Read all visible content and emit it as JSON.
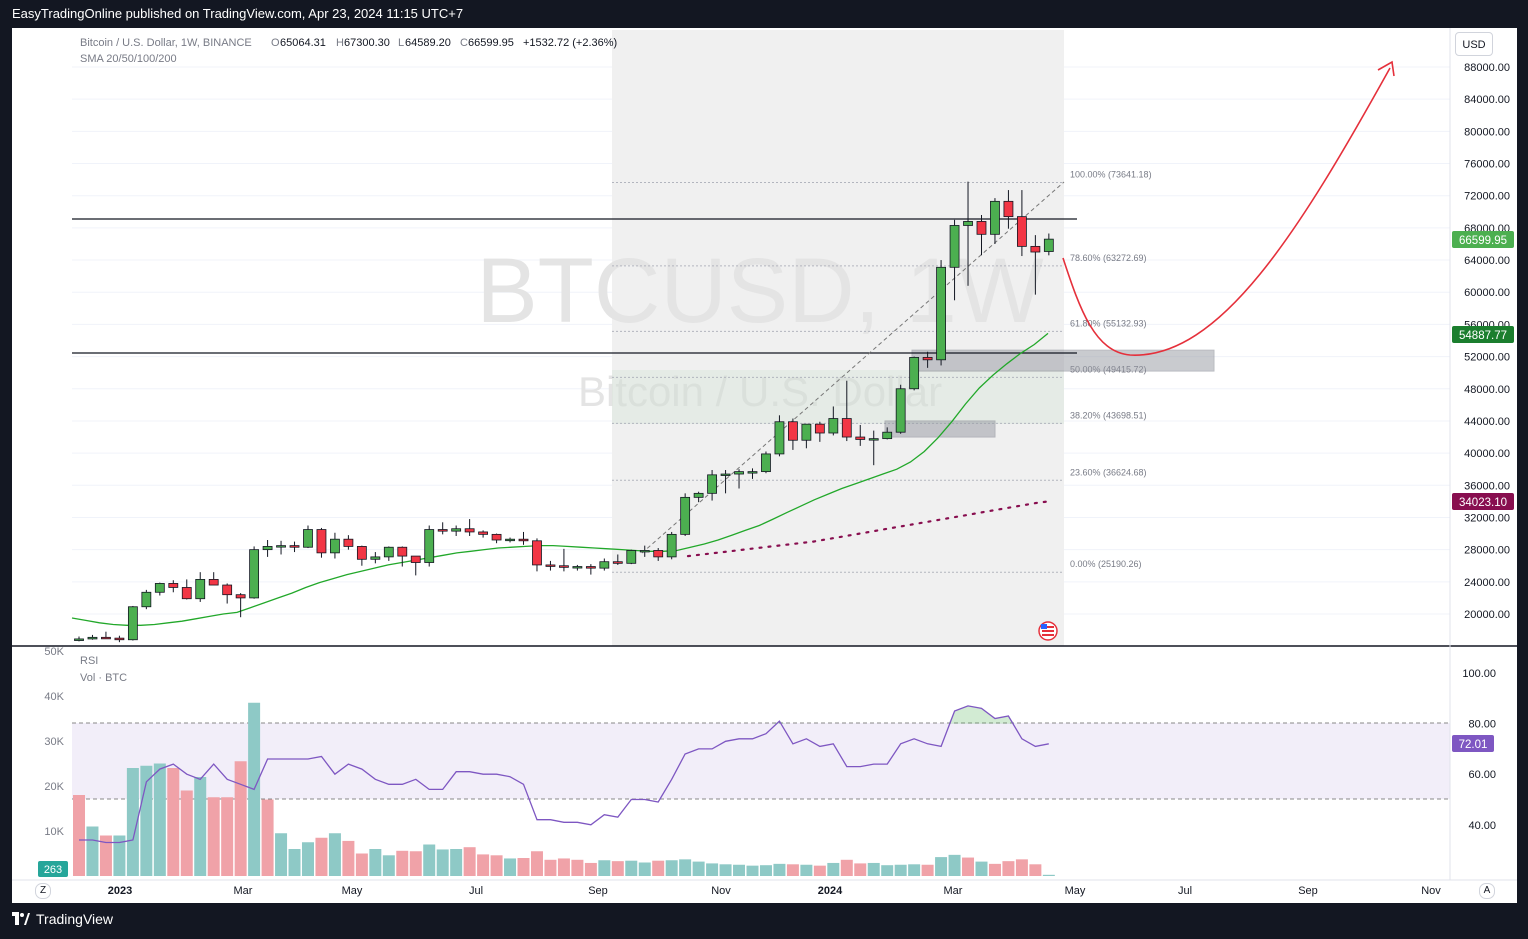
{
  "header": {
    "publish_text": "EasyTradingOnline published on TradingView.com, Apr 23, 2024 11:15 UTC+7"
  },
  "legend": {
    "symbol": "Bitcoin / U.S. Dollar, 1W, BINANCE",
    "open_label": "O",
    "open": "65064.31",
    "high_label": "H",
    "high": "67300.30",
    "low_label": "L",
    "low": "64589.20",
    "close_label": "C",
    "close": "66599.95",
    "change": "+1532.72 (+2.36%)",
    "indicator": "SMA 20/50/100/200"
  },
  "watermark": {
    "ticker": "BTCUSD, 1W",
    "name": "Bitcoin / U.S. Dollar"
  },
  "currency_button": "USD",
  "price_badges": {
    "last": "66599.95",
    "sma_a": "54887.77",
    "sma_b": "34023.10"
  },
  "fib_labels": [
    {
      "label": "100.00% (73641.18)",
      "price": 73641.18
    },
    {
      "label": "78.60% (63272.69)",
      "price": 63272.69
    },
    {
      "label": "61.80% (55132.93)",
      "price": 55132.93
    },
    {
      "label": "50.00% (49415.72)",
      "price": 49415.72
    },
    {
      "label": "38.20% (43698.51)",
      "price": 43698.51
    },
    {
      "label": "23.60% (36624.68)",
      "price": 36624.68
    },
    {
      "label": "0.00% (25190.26)",
      "price": 25190.26
    }
  ],
  "lower_pane": {
    "rsi_label": "RSI",
    "vol_label": "Vol · BTC",
    "rsi_value": "72.01",
    "vol_value": "263"
  },
  "footer": {
    "brand": "TradingView",
    "z_label": "Z",
    "a_label": "A"
  },
  "colors": {
    "up": "#4caf50",
    "down": "#f23645",
    "sma": "#22a82a",
    "sma_slow": "#880e4f",
    "rsi": "#7e57c2"
  },
  "chart_data": {
    "type": "candlestick",
    "timeframe": "1W",
    "price_axis_ticks": [
      "88000.00",
      "84000.00",
      "80000.00",
      "76000.00",
      "72000.00",
      "68000.00",
      "64000.00",
      "60000.00",
      "56000.00",
      "52000.00",
      "48000.00",
      "44000.00",
      "40000.00",
      "36000.00",
      "32000.00",
      "28000.00",
      "24000.00",
      "20000.00"
    ],
    "time_axis_ticks": [
      "2023",
      "Mar",
      "May",
      "Jul",
      "Sep",
      "Nov",
      "2024",
      "Mar",
      "May",
      "Jul",
      "Sep",
      "Nov"
    ],
    "rsi_axis_ticks": [
      "100.00",
      "80.00",
      "60.00",
      "40.00"
    ],
    "vol_axis_ticks": [
      "50K",
      "40K",
      "30K",
      "20K",
      "10K"
    ],
    "candles": [
      {
        "o": 16700,
        "h": 17200,
        "l": 16600,
        "c": 16900
      },
      {
        "o": 16900,
        "h": 17400,
        "l": 16800,
        "c": 17100
      },
      {
        "o": 17100,
        "h": 17800,
        "l": 16900,
        "c": 17000
      },
      {
        "o": 17000,
        "h": 17300,
        "l": 16500,
        "c": 16800
      },
      {
        "o": 16800,
        "h": 21000,
        "l": 16700,
        "c": 20900
      },
      {
        "o": 20900,
        "h": 23000,
        "l": 20600,
        "c": 22700
      },
      {
        "o": 22700,
        "h": 23900,
        "l": 22300,
        "c": 23800
      },
      {
        "o": 23800,
        "h": 24200,
        "l": 22700,
        "c": 23300
      },
      {
        "o": 23300,
        "h": 24300,
        "l": 21800,
        "c": 21900
      },
      {
        "o": 21900,
        "h": 25200,
        "l": 21500,
        "c": 24300
      },
      {
        "o": 24300,
        "h": 25200,
        "l": 23600,
        "c": 23600
      },
      {
        "o": 23600,
        "h": 23800,
        "l": 21300,
        "c": 22400
      },
      {
        "o": 22400,
        "h": 22600,
        "l": 19600,
        "c": 22000
      },
      {
        "o": 22000,
        "h": 28400,
        "l": 21900,
        "c": 28000
      },
      {
        "o": 28000,
        "h": 29200,
        "l": 27100,
        "c": 28400
      },
      {
        "o": 28400,
        "h": 29100,
        "l": 27400,
        "c": 28500
      },
      {
        "o": 28500,
        "h": 29000,
        "l": 27700,
        "c": 28300
      },
      {
        "o": 28300,
        "h": 31000,
        "l": 28200,
        "c": 30500
      },
      {
        "o": 30500,
        "h": 30700,
        "l": 27000,
        "c": 27600
      },
      {
        "o": 27600,
        "h": 30100,
        "l": 26900,
        "c": 29300
      },
      {
        "o": 29300,
        "h": 29800,
        "l": 28000,
        "c": 28400
      },
      {
        "o": 28400,
        "h": 28500,
        "l": 26000,
        "c": 26800
      },
      {
        "o": 26800,
        "h": 27700,
        "l": 26300,
        "c": 27100
      },
      {
        "o": 27100,
        "h": 28400,
        "l": 26600,
        "c": 28300
      },
      {
        "o": 28300,
        "h": 28400,
        "l": 25900,
        "c": 27200
      },
      {
        "o": 27200,
        "h": 27200,
        "l": 24800,
        "c": 26400
      },
      {
        "o": 26400,
        "h": 31000,
        "l": 25900,
        "c": 30500
      },
      {
        "o": 30500,
        "h": 31400,
        "l": 29900,
        "c": 30300
      },
      {
        "o": 30300,
        "h": 31000,
        "l": 29700,
        "c": 30600
      },
      {
        "o": 30600,
        "h": 31800,
        "l": 29700,
        "c": 30200
      },
      {
        "o": 30200,
        "h": 30400,
        "l": 29500,
        "c": 29900
      },
      {
        "o": 29900,
        "h": 30000,
        "l": 28800,
        "c": 29200
      },
      {
        "o": 29200,
        "h": 29500,
        "l": 28900,
        "c": 29300
      },
      {
        "o": 29300,
        "h": 30200,
        "l": 28600,
        "c": 29100
      },
      {
        "o": 29100,
        "h": 29400,
        "l": 25300,
        "c": 26100
      },
      {
        "o": 26100,
        "h": 26600,
        "l": 25400,
        "c": 26000
      },
      {
        "o": 26000,
        "h": 28100,
        "l": 25300,
        "c": 25800
      },
      {
        "o": 25800,
        "h": 26100,
        "l": 25400,
        "c": 25900
      },
      {
        "o": 25900,
        "h": 26200,
        "l": 24900,
        "c": 25700
      },
      {
        "o": 25700,
        "h": 26900,
        "l": 25400,
        "c": 26500
      },
      {
        "o": 26500,
        "h": 27400,
        "l": 26100,
        "c": 26300
      },
      {
        "o": 26300,
        "h": 28000,
        "l": 26200,
        "c": 27900
      },
      {
        "o": 27900,
        "h": 28500,
        "l": 27100,
        "c": 27900
      },
      {
        "o": 27900,
        "h": 28200,
        "l": 26600,
        "c": 27100
      },
      {
        "o": 27100,
        "h": 30200,
        "l": 26800,
        "c": 29900
      },
      {
        "o": 29900,
        "h": 35000,
        "l": 29700,
        "c": 34500
      },
      {
        "o": 34500,
        "h": 35200,
        "l": 33900,
        "c": 35000
      },
      {
        "o": 35000,
        "h": 37900,
        "l": 34100,
        "c": 37300
      },
      {
        "o": 37300,
        "h": 37900,
        "l": 35000,
        "c": 37400
      },
      {
        "o": 37400,
        "h": 38000,
        "l": 35600,
        "c": 37700
      },
      {
        "o": 37700,
        "h": 38100,
        "l": 36800,
        "c": 37700
      },
      {
        "o": 37700,
        "h": 40200,
        "l": 37500,
        "c": 39900
      },
      {
        "o": 39900,
        "h": 44700,
        "l": 39600,
        "c": 43900
      },
      {
        "o": 43900,
        "h": 44300,
        "l": 40400,
        "c": 41600
      },
      {
        "o": 41600,
        "h": 43500,
        "l": 40600,
        "c": 43600
      },
      {
        "o": 43600,
        "h": 43900,
        "l": 41400,
        "c": 42500
      },
      {
        "o": 42500,
        "h": 45800,
        "l": 42200,
        "c": 44300
      },
      {
        "o": 44300,
        "h": 49000,
        "l": 41500,
        "c": 42000
      },
      {
        "o": 42000,
        "h": 43500,
        "l": 40900,
        "c": 41700
      },
      {
        "o": 41700,
        "h": 42800,
        "l": 38500,
        "c": 41800
      },
      {
        "o": 41800,
        "h": 43200,
        "l": 41700,
        "c": 42600
      },
      {
        "o": 42600,
        "h": 48500,
        "l": 42400,
        "c": 48000
      },
      {
        "o": 48000,
        "h": 52000,
        "l": 47800,
        "c": 51900
      },
      {
        "o": 51900,
        "h": 52600,
        "l": 50600,
        "c": 51600
      },
      {
        "o": 51600,
        "h": 64000,
        "l": 50900,
        "c": 63100
      },
      {
        "o": 63100,
        "h": 69000,
        "l": 59000,
        "c": 68300
      },
      {
        "o": 68300,
        "h": 73750,
        "l": 60800,
        "c": 68800
      },
      {
        "o": 68800,
        "h": 69600,
        "l": 64600,
        "c": 67200
      },
      {
        "o": 67200,
        "h": 71700,
        "l": 66000,
        "c": 71300
      },
      {
        "o": 71300,
        "h": 72700,
        "l": 67900,
        "c": 69400
      },
      {
        "o": 69400,
        "h": 72700,
        "l": 64500,
        "c": 65700
      },
      {
        "o": 65700,
        "h": 67100,
        "l": 59700,
        "c": 65000
      },
      {
        "o": 65064.31,
        "h": 67300.3,
        "l": 64589.2,
        "c": 66599.95
      }
    ],
    "sma_fast": [
      19500,
      19200,
      18900,
      18700,
      18600,
      18600,
      18700,
      18900,
      19100,
      19400,
      19700,
      20000,
      20200,
      20800,
      21400,
      22000,
      22600,
      23300,
      23900,
      24400,
      24900,
      25300,
      25700,
      26100,
      26400,
      26700,
      27000,
      27300,
      27600,
      27800,
      28000,
      28200,
      28300,
      28400,
      28500,
      28500,
      28400,
      28300,
      28200,
      28100,
      28000,
      27900,
      27800,
      27800,
      27900,
      28300,
      28700,
      29200,
      29800,
      30400,
      31000,
      31800,
      32600,
      33400,
      34200,
      34900,
      35600,
      36200,
      36800,
      37400,
      38000,
      38900,
      40200,
      41900,
      43900,
      46100,
      48100,
      49700,
      51100,
      52400,
      53500,
      54887.77
    ],
    "sma_slow": [
      27200,
      27400,
      27600,
      27800,
      28000,
      28200,
      28400,
      28600,
      28800,
      29000,
      29300,
      29600,
      29900,
      30200,
      30500,
      30800,
      31100,
      31400,
      31700,
      32000,
      32300,
      32600,
      32900,
      33200,
      33500,
      33800,
      34023.1
    ],
    "volume": [
      {
        "v": 18000,
        "u": false
      },
      {
        "v": 11000,
        "u": true
      },
      {
        "v": 9000,
        "u": false
      },
      {
        "v": 9000,
        "u": true
      },
      {
        "v": 24000,
        "u": true
      },
      {
        "v": 24500,
        "u": true
      },
      {
        "v": 25000,
        "u": true
      },
      {
        "v": 24000,
        "u": false
      },
      {
        "v": 19000,
        "u": false
      },
      {
        "v": 22000,
        "u": true
      },
      {
        "v": 17500,
        "u": false
      },
      {
        "v": 17500,
        "u": false
      },
      {
        "v": 25500,
        "u": false
      },
      {
        "v": 38500,
        "u": true
      },
      {
        "v": 17000,
        "u": false
      },
      {
        "v": 9500,
        "u": true
      },
      {
        "v": 6000,
        "u": true
      },
      {
        "v": 7500,
        "u": true
      },
      {
        "v": 8500,
        "u": false
      },
      {
        "v": 9500,
        "u": true
      },
      {
        "v": 7800,
        "u": false
      },
      {
        "v": 5000,
        "u": false
      },
      {
        "v": 6000,
        "u": true
      },
      {
        "v": 4600,
        "u": true
      },
      {
        "v": 5600,
        "u": false
      },
      {
        "v": 5500,
        "u": false
      },
      {
        "v": 7000,
        "u": true
      },
      {
        "v": 5900,
        "u": true
      },
      {
        "v": 6000,
        "u": true
      },
      {
        "v": 6400,
        "u": false
      },
      {
        "v": 4800,
        "u": false
      },
      {
        "v": 4600,
        "u": false
      },
      {
        "v": 3900,
        "u": true
      },
      {
        "v": 4000,
        "u": false
      },
      {
        "v": 5500,
        "u": false
      },
      {
        "v": 3600,
        "u": false
      },
      {
        "v": 3900,
        "u": false
      },
      {
        "v": 3600,
        "u": false
      },
      {
        "v": 2900,
        "u": false
      },
      {
        "v": 3500,
        "u": true
      },
      {
        "v": 3300,
        "u": false
      },
      {
        "v": 3400,
        "u": true
      },
      {
        "v": 3000,
        "u": true
      },
      {
        "v": 3400,
        "u": false
      },
      {
        "v": 3500,
        "u": true
      },
      {
        "v": 3700,
        "u": true
      },
      {
        "v": 3200,
        "u": true
      },
      {
        "v": 2800,
        "u": true
      },
      {
        "v": 2600,
        "u": true
      },
      {
        "v": 2500,
        "u": true
      },
      {
        "v": 2300,
        "u": true
      },
      {
        "v": 2400,
        "u": true
      },
      {
        "v": 2700,
        "u": true
      },
      {
        "v": 2600,
        "u": false
      },
      {
        "v": 2500,
        "u": true
      },
      {
        "v": 2300,
        "u": false
      },
      {
        "v": 2900,
        "u": true
      },
      {
        "v": 3600,
        "u": false
      },
      {
        "v": 2800,
        "u": false
      },
      {
        "v": 2900,
        "u": true
      },
      {
        "v": 2400,
        "u": true
      },
      {
        "v": 2500,
        "u": true
      },
      {
        "v": 2600,
        "u": true
      },
      {
        "v": 2500,
        "u": false
      },
      {
        "v": 4200,
        "u": true
      },
      {
        "v": 4700,
        "u": true
      },
      {
        "v": 4100,
        "u": false
      },
      {
        "v": 3200,
        "u": true
      },
      {
        "v": 2700,
        "u": false
      },
      {
        "v": 3300,
        "u": false
      },
      {
        "v": 3700,
        "u": false
      },
      {
        "v": 2600,
        "u": false
      },
      {
        "v": 263,
        "u": true
      }
    ],
    "rsi": [
      34,
      34,
      33,
      33,
      34,
      57,
      62,
      64,
      60,
      58,
      64,
      58,
      56,
      54,
      66,
      66,
      66,
      66,
      67,
      60,
      64,
      62,
      58,
      56,
      56,
      58,
      54,
      54,
      61,
      61,
      60,
      60,
      59,
      56,
      42,
      42,
      41,
      41,
      40,
      44,
      43,
      50,
      50,
      49,
      58,
      68,
      70,
      70,
      73,
      74,
      74,
      76,
      81,
      72,
      74,
      71,
      72,
      63,
      63,
      64,
      64,
      72,
      74,
      72,
      71,
      85,
      87,
      86,
      82,
      83,
      74,
      71,
      72.01
    ],
    "rsi_overbought": 80,
    "rsi_oversold": 50
  }
}
